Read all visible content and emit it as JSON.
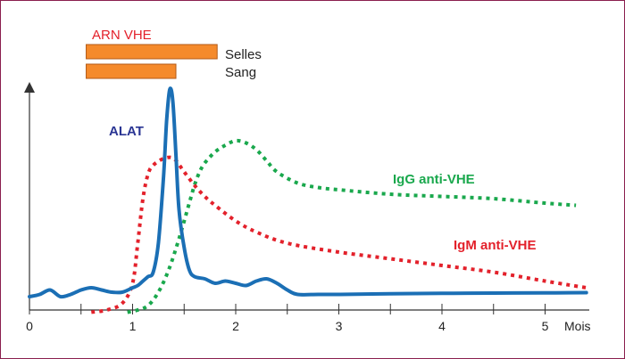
{
  "chart_data": {
    "type": "line",
    "xlim": [
      0,
      5.6
    ],
    "ylim": [
      0,
      100
    ],
    "x_unit_label": "Mois",
    "x_ticks": [
      {
        "value": 0,
        "label": "0"
      },
      {
        "value": 0.5,
        "label": ""
      },
      {
        "value": 1,
        "label": "1"
      },
      {
        "value": 1.5,
        "label": ""
      },
      {
        "value": 2,
        "label": "2"
      },
      {
        "value": 2.5,
        "label": ""
      },
      {
        "value": 3,
        "label": "3"
      },
      {
        "value": 3.5,
        "label": ""
      },
      {
        "value": 4,
        "label": "4"
      },
      {
        "value": 4.5,
        "label": ""
      },
      {
        "value": 5,
        "label": "5"
      }
    ],
    "bars_title": "ARN VHE",
    "bars": [
      {
        "label": "Selles",
        "start": 0.55,
        "end": 1.82,
        "color": "#f58a2b"
      },
      {
        "label": "Sang",
        "start": 0.55,
        "end": 1.42,
        "color": "#f58a2b"
      }
    ],
    "series": [
      {
        "name": "ALAT",
        "color": "#1b6fb5",
        "label_color": "#2a3593",
        "style": "solid",
        "points": [
          [
            0,
            6
          ],
          [
            0.1,
            7
          ],
          [
            0.2,
            9
          ],
          [
            0.3,
            6
          ],
          [
            0.4,
            7
          ],
          [
            0.5,
            9
          ],
          [
            0.6,
            10
          ],
          [
            0.7,
            9
          ],
          [
            0.8,
            8
          ],
          [
            0.9,
            8
          ],
          [
            1.0,
            10
          ],
          [
            1.05,
            11
          ],
          [
            1.1,
            13
          ],
          [
            1.15,
            15
          ],
          [
            1.2,
            17
          ],
          [
            1.25,
            30
          ],
          [
            1.3,
            60
          ],
          [
            1.33,
            85
          ],
          [
            1.36,
            99
          ],
          [
            1.39,
            94
          ],
          [
            1.42,
            70
          ],
          [
            1.45,
            45
          ],
          [
            1.5,
            28
          ],
          [
            1.55,
            18
          ],
          [
            1.6,
            15
          ],
          [
            1.7,
            14
          ],
          [
            1.8,
            12
          ],
          [
            1.9,
            13
          ],
          [
            2.0,
            12
          ],
          [
            2.1,
            11
          ],
          [
            2.2,
            13
          ],
          [
            2.3,
            14
          ],
          [
            2.4,
            12
          ],
          [
            2.5,
            9
          ],
          [
            2.6,
            7
          ],
          [
            2.8,
            7
          ],
          [
            3.0,
            7
          ],
          [
            3.5,
            7.3
          ],
          [
            4.0,
            7.5
          ],
          [
            4.5,
            7.6
          ],
          [
            5.0,
            7.7
          ],
          [
            5.4,
            7.8
          ]
        ]
      },
      {
        "name": "IgM anti-VHE",
        "color": "#e3212b",
        "label_color": "#e3212b",
        "style": "dotted",
        "points": [
          [
            0.6,
            -1
          ],
          [
            0.75,
            0
          ],
          [
            0.9,
            3
          ],
          [
            1.0,
            12
          ],
          [
            1.05,
            30
          ],
          [
            1.1,
            50
          ],
          [
            1.15,
            61
          ],
          [
            1.2,
            65
          ],
          [
            1.3,
            68
          ],
          [
            1.4,
            68
          ],
          [
            1.5,
            62
          ],
          [
            1.6,
            56
          ],
          [
            1.7,
            51
          ],
          [
            1.8,
            47
          ],
          [
            2.0,
            40
          ],
          [
            2.2,
            35
          ],
          [
            2.5,
            30
          ],
          [
            3.0,
            26
          ],
          [
            3.5,
            23
          ],
          [
            4.0,
            20
          ],
          [
            4.5,
            17
          ],
          [
            5.0,
            13
          ],
          [
            5.4,
            10
          ]
        ]
      },
      {
        "name": "IgG anti-VHE",
        "color": "#1aa84d",
        "label_color": "#1aa84d",
        "style": "dotted",
        "points": [
          [
            0.95,
            -1
          ],
          [
            1.05,
            0
          ],
          [
            1.15,
            2
          ],
          [
            1.25,
            8
          ],
          [
            1.35,
            18
          ],
          [
            1.45,
            32
          ],
          [
            1.55,
            48
          ],
          [
            1.6,
            56
          ],
          [
            1.65,
            62
          ],
          [
            1.7,
            66
          ],
          [
            1.8,
            71
          ],
          [
            1.9,
            74
          ],
          [
            2.0,
            76
          ],
          [
            2.1,
            75
          ],
          [
            2.2,
            72
          ],
          [
            2.3,
            67
          ],
          [
            2.4,
            62
          ],
          [
            2.6,
            57
          ],
          [
            2.8,
            55
          ],
          [
            3.0,
            54
          ],
          [
            3.5,
            52
          ],
          [
            4.0,
            51
          ],
          [
            4.5,
            50
          ],
          [
            5.0,
            48
          ],
          [
            5.3,
            47
          ]
        ]
      }
    ]
  }
}
